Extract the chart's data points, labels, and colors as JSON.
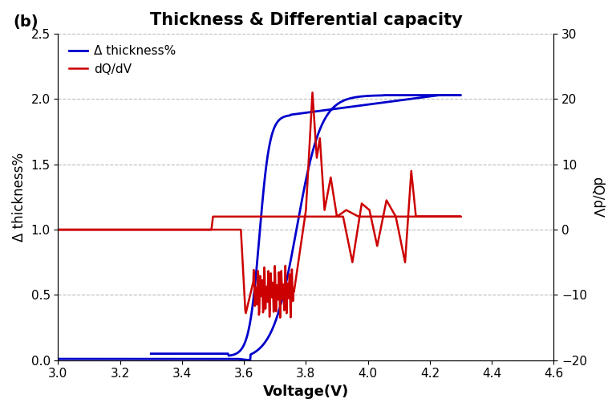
{
  "title": "Thickness & Differential capacity",
  "panel_label": "(b)",
  "xlabel": "Voltage(V)",
  "ylabel_left": "Δ thickness%",
  "ylabel_right": "dQ/dV",
  "xlim": [
    3.0,
    4.6
  ],
  "ylim_left": [
    0,
    2.5
  ],
  "ylim_right": [
    -20,
    30
  ],
  "xticks": [
    3.0,
    3.2,
    3.4,
    3.6,
    3.8,
    4.0,
    4.2,
    4.4,
    4.6
  ],
  "yticks_left": [
    0,
    0.5,
    1.0,
    1.5,
    2.0,
    2.5
  ],
  "yticks_right": [
    -20,
    -10,
    0,
    10,
    20,
    30
  ],
  "legend_blue": "Δ thickness%",
  "legend_red": "dQ/dV",
  "blue_color": "#0000cc",
  "red_color": "#cc0000",
  "background_color": "#ffffff",
  "grid_color": "#bbbbbb"
}
